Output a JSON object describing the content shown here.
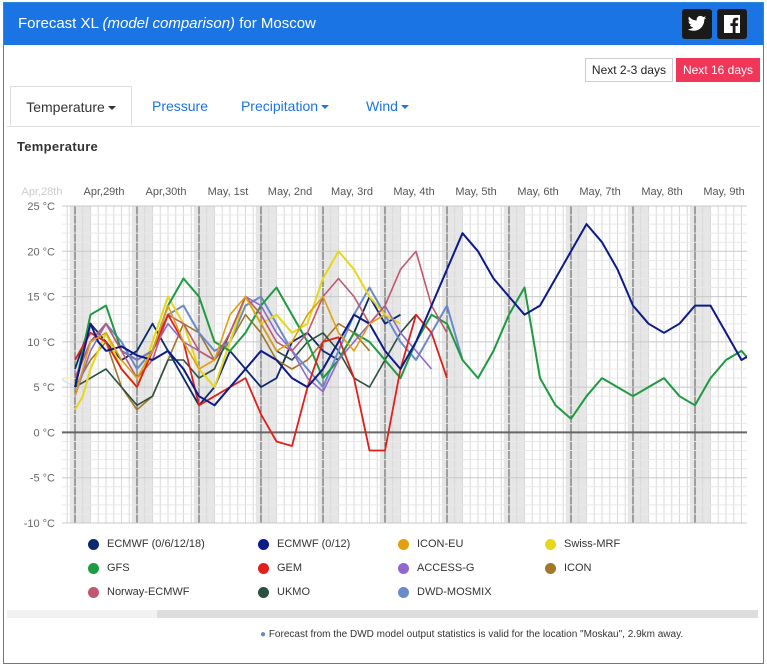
{
  "header": {
    "title_prefix": "Forecast XL ",
    "title_model": "(model comparison)",
    "title_suffix": " for Moscow",
    "twitter_icon": "twitter-icon",
    "facebook_icon": "facebook-icon"
  },
  "range_buttons": {
    "next_2_3": "Next 2-3 days",
    "next_16": "Next 16 days"
  },
  "tabs": [
    "Temperature",
    "Pressure",
    "Precipitation",
    "Wind"
  ],
  "section_title": "Temperature",
  "note": "Forecast from the DWD model output statistics is valid for the location \"Moskau\", 2.9km away.",
  "colors": {
    "header": "#1b74e4",
    "active_range": "#f0375a"
  },
  "chart_data": {
    "type": "line",
    "day_labels": [
      "Apr,28th",
      "Apr,29th",
      "Apr,30th",
      "May, 1st",
      "May, 2nd",
      "May, 3rd",
      "May, 4th",
      "May, 5th",
      "May, 6th",
      "May, 7th",
      "May, 8th",
      "May, 9th"
    ],
    "y_ticks": [
      "25 °C",
      "20 °C",
      "15 °C",
      "10 °C",
      "5 °C",
      "0 °C",
      "-5 °C",
      "-10 °C"
    ],
    "ylim": [
      -10,
      25
    ],
    "x_unit": "hours since Apr 29th 00:00",
    "grid": true,
    "legend": [
      {
        "name": "ECMWF (0/6/12/18)",
        "color": "#0a2a6e"
      },
      {
        "name": "ECMWF (0/12)",
        "color": "#0c1a8a"
      },
      {
        "name": "ICON-EU",
        "color": "#e0a010"
      },
      {
        "name": "Swiss-MRF",
        "color": "#e6d818"
      },
      {
        "name": "GFS",
        "color": "#1e9a40"
      },
      {
        "name": "GEM",
        "color": "#e0201c"
      },
      {
        "name": "ACCESS-G",
        "color": "#9068d0"
      },
      {
        "name": "ICON",
        "color": "#a07828"
      },
      {
        "name": "Norway-ECMWF",
        "color": "#c05870"
      },
      {
        "name": "UKMO",
        "color": "#2c5040"
      },
      {
        "name": "DWD-MOSMIX",
        "color": "#6a8acb"
      }
    ],
    "series": [
      {
        "name": "ECMWF (0/6/12/18)",
        "color": "#0a2a6e",
        "width": 1.8,
        "x": [
          0,
          6,
          12,
          18,
          24,
          30,
          36,
          42,
          48,
          54,
          60,
          66,
          72,
          78,
          84,
          90,
          96,
          102,
          108,
          114,
          120,
          126
        ],
        "y": [
          7,
          12,
          10,
          8,
          9,
          12,
          9,
          6,
          3,
          5,
          9,
          7,
          5,
          6,
          10,
          11,
          9,
          8,
          11,
          15,
          12,
          13
        ]
      },
      {
        "name": "ECMWF (0/12)",
        "color": "#0c1a8a",
        "width": 2,
        "x": [
          0,
          6,
          9,
          12,
          18,
          24,
          30,
          36,
          42,
          48,
          54,
          60,
          66,
          72,
          78,
          84,
          90,
          96,
          102,
          108,
          114,
          120,
          126,
          132,
          138,
          144,
          150,
          156,
          162,
          168,
          174,
          180,
          186,
          192,
          198,
          204,
          210,
          216,
          222,
          228,
          234,
          240,
          246,
          252,
          258,
          264,
          270,
          276,
          282,
          288,
          294,
          300,
          306,
          312,
          318,
          324,
          330,
          336,
          342,
          348,
          354,
          360,
          366,
          372,
          378,
          384,
          390,
          396,
          402,
          408,
          414,
          420,
          426,
          432,
          438,
          444,
          450,
          456,
          462,
          468,
          474,
          480,
          486,
          492,
          498,
          504,
          510,
          516,
          522,
          528,
          534,
          540,
          546,
          552,
          558,
          564,
          570,
          576,
          582,
          588,
          594,
          600,
          606,
          612,
          618,
          624,
          630,
          636,
          642
        ],
        "y": [
          5,
          12,
          10,
          9,
          9.5,
          8.5,
          8,
          9,
          7,
          4,
          3,
          5,
          7,
          9,
          8,
          6,
          5,
          7,
          10,
          13,
          12,
          9,
          7,
          10,
          14,
          18,
          22,
          20,
          17,
          15,
          13,
          14,
          17,
          20,
          23,
          21,
          18,
          14,
          12,
          11,
          12,
          14,
          14,
          11,
          8,
          9,
          11,
          12,
          15,
          16,
          14,
          12,
          9,
          8,
          10,
          13,
          15,
          16,
          15,
          14,
          13,
          13,
          14,
          15,
          13,
          12,
          11,
          10,
          10,
          10,
          10,
          10,
          10,
          10,
          10,
          10,
          10,
          10,
          10,
          10,
          10,
          10,
          10,
          10,
          10,
          10,
          10,
          10,
          10,
          10,
          10,
          10,
          10,
          10,
          10,
          10,
          10,
          10,
          10,
          10,
          10,
          10,
          10,
          10,
          10,
          10,
          10,
          10,
          10
        ]
      },
      {
        "name": "ICON-EU",
        "color": "#e0a010",
        "width": 1.6,
        "x": [
          0,
          6,
          12,
          18,
          24,
          30,
          36,
          42,
          48,
          54,
          60,
          66,
          72,
          78,
          84,
          90,
          96,
          102,
          108,
          114,
          120
        ],
        "y": [
          4,
          10,
          11,
          8,
          6,
          9,
          14,
          10,
          7,
          8,
          13,
          15,
          12,
          9,
          10,
          13,
          15,
          11,
          9,
          12,
          13
        ]
      },
      {
        "name": "Swiss-MRF",
        "color": "#e6d818",
        "width": 2,
        "x": [
          0,
          3,
          6,
          12,
          18,
          24,
          30,
          36,
          42,
          48,
          54,
          60,
          66,
          72,
          78,
          84,
          90,
          96,
          102,
          108,
          114,
          120,
          126
        ],
        "y": [
          2.5,
          4,
          7,
          11,
          7,
          5,
          10,
          15,
          12,
          7,
          5,
          10,
          15,
          12,
          13,
          11,
          12,
          17,
          20,
          18,
          15,
          13,
          12
        ]
      },
      {
        "name": "GFS",
        "color": "#1e9a40",
        "width": 2,
        "x": [
          0,
          6,
          12,
          18,
          24,
          30,
          36,
          42,
          48,
          54,
          60,
          66,
          72,
          78,
          84,
          90,
          96,
          102,
          108,
          114,
          120,
          126,
          132,
          138,
          144,
          150,
          156,
          162,
          168,
          174,
          180,
          186,
          192,
          198,
          204,
          210,
          216,
          222,
          228,
          234,
          240,
          246,
          252,
          258,
          264,
          270,
          276,
          282,
          288,
          294,
          300,
          306,
          312,
          318,
          324,
          330,
          336,
          342,
          348
        ],
        "y": [
          5,
          13,
          14,
          9,
          8,
          9,
          14,
          17,
          15,
          10,
          9,
          11,
          14,
          16,
          13,
          10,
          6,
          8,
          11,
          10,
          8,
          6,
          10,
          13,
          12,
          8,
          6,
          9,
          13,
          16,
          6,
          3,
          1.5,
          4,
          6,
          5,
          4,
          5,
          6,
          4,
          3,
          6,
          8,
          9,
          7,
          5,
          3,
          6,
          8,
          9,
          6,
          5,
          4,
          3.5,
          4,
          5,
          5,
          5.5,
          5.5
        ]
      },
      {
        "name": "GEM",
        "color": "#e0201c",
        "width": 1.8,
        "x": [
          0,
          6,
          12,
          18,
          24,
          30,
          36,
          42,
          48,
          54,
          60,
          66,
          72,
          78,
          84,
          90,
          96,
          102,
          108,
          114,
          120,
          126,
          132,
          138,
          144
        ],
        "y": [
          8,
          11,
          10,
          7,
          5,
          9,
          13,
          10,
          3,
          4,
          5,
          6,
          2,
          -1,
          -1.5,
          5,
          10,
          10.5,
          6,
          -2,
          -2,
          7,
          13,
          11,
          6
        ]
      },
      {
        "name": "ACCESS-G",
        "color": "#9068d0",
        "width": 1.6,
        "x": [
          0,
          6,
          12,
          18,
          24,
          30,
          36,
          42,
          48,
          54,
          60,
          66,
          72,
          78,
          84,
          90,
          96,
          102,
          108,
          114,
          120,
          126,
          132,
          138
        ],
        "y": [
          4,
          9,
          12,
          9,
          8,
          9,
          12,
          10,
          9,
          8,
          11,
          15,
          14,
          11,
          9,
          6,
          4.5,
          8,
          10,
          12,
          14,
          11,
          9,
          7
        ]
      },
      {
        "name": "ICON",
        "color": "#a07828",
        "width": 1.6,
        "x": [
          0,
          6,
          12,
          18,
          24,
          30,
          36,
          42,
          48,
          54,
          60,
          66,
          72,
          78,
          84,
          90,
          96,
          102,
          108,
          114
        ],
        "y": [
          5,
          8,
          10,
          5,
          2.5,
          4,
          8,
          12,
          11,
          8,
          10,
          13,
          11,
          8,
          7,
          8,
          10,
          12,
          11,
          9
        ]
      },
      {
        "name": "Norway-ECMWF",
        "color": "#c05870",
        "width": 1.6,
        "x": [
          0,
          6,
          12,
          18,
          24,
          30,
          36,
          42,
          48,
          54,
          60,
          66,
          72,
          78,
          84,
          90,
          96,
          102,
          108,
          114,
          120,
          126,
          132,
          138,
          144
        ],
        "y": [
          6,
          10,
          12,
          9,
          6,
          8,
          13,
          12,
          9,
          8,
          11,
          15,
          13,
          10,
          9,
          11,
          15,
          17,
          15,
          12,
          14,
          18,
          20,
          14,
          11
        ]
      },
      {
        "name": "UKMO",
        "color": "#2c5040",
        "width": 1.6,
        "x": [
          0,
          6,
          12,
          18,
          24,
          30,
          36,
          42,
          48,
          54,
          60,
          66,
          72,
          78,
          84,
          90,
          96,
          102,
          108,
          114,
          120,
          126,
          132
        ],
        "y": [
          5,
          6,
          7,
          5,
          3,
          4,
          8,
          8,
          6,
          7,
          11,
          15,
          12,
          9,
          8,
          10,
          11,
          9,
          6,
          5,
          8,
          11,
          13
        ]
      },
      {
        "name": "DWD-MOSMIX",
        "color": "#6a8acb",
        "width": 2,
        "x": [
          0,
          6,
          12,
          18,
          24,
          30,
          36,
          42,
          48,
          54,
          60,
          66,
          72,
          78,
          84,
          90,
          96,
          102,
          108,
          114,
          120,
          126,
          132,
          138,
          144,
          150
        ],
        "y": [
          6,
          10,
          12,
          10,
          7,
          9,
          13,
          14,
          11,
          9,
          10,
          14,
          15,
          12,
          9,
          7,
          5,
          9,
          13,
          16,
          13,
          10,
          8,
          11,
          14,
          8
        ]
      },
      {
        "name": "Apr28 fade",
        "color": "#f5efb8",
        "width": 1.5,
        "x": [
          -45,
          -40,
          -35,
          -30,
          -24,
          -18,
          -12,
          -6,
          0
        ],
        "y": [
          6,
          8,
          10,
          11,
          10,
          8,
          7,
          6,
          6
        ]
      },
      {
        "name": "Apr28 fade 2",
        "color": "#cfe3f0",
        "width": 1.5,
        "x": [
          -45,
          -40,
          -35,
          -30,
          -24,
          -18,
          -12,
          -6,
          0
        ],
        "y": [
          7,
          9,
          10,
          9,
          8,
          7,
          7,
          6,
          5
        ]
      }
    ]
  }
}
